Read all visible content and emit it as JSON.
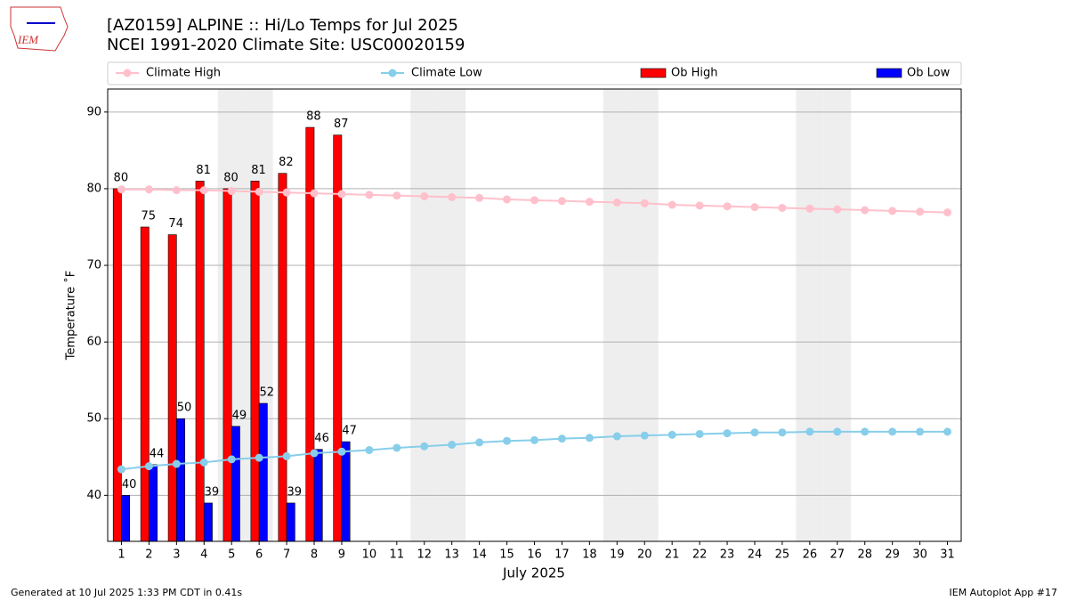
{
  "logo_text": "IEM",
  "chart_data": {
    "type": "bar_line",
    "title": "[AZ0159] ALPINE :: Hi/Lo Temps for Jul 2025",
    "subtitle": "NCEI 1991-2020 Climate Site: USC00020159",
    "xlabel": "July 2025",
    "ylabel": "Temperature ˚F",
    "x": [
      1,
      2,
      3,
      4,
      5,
      6,
      7,
      8,
      9,
      10,
      11,
      12,
      13,
      14,
      15,
      16,
      17,
      18,
      19,
      20,
      21,
      22,
      23,
      24,
      25,
      26,
      27,
      28,
      29,
      30,
      31
    ],
    "xlim": [
      0.5,
      31.5
    ],
    "xticks": [
      1,
      2,
      3,
      4,
      5,
      6,
      7,
      8,
      9,
      10,
      11,
      12,
      13,
      14,
      15,
      16,
      17,
      18,
      19,
      20,
      21,
      22,
      23,
      24,
      25,
      26,
      27,
      28,
      29,
      30,
      31
    ],
    "ylim": [
      34,
      93
    ],
    "yticks": [
      40,
      50,
      60,
      70,
      80,
      90
    ],
    "grid": true,
    "shaded_days": [
      5,
      6,
      12,
      13,
      19,
      20,
      26,
      27
    ],
    "series": [
      {
        "name": "Climate High",
        "kind": "line",
        "color": "#ffc0cb",
        "values": [
          79.9,
          79.9,
          79.8,
          79.8,
          79.7,
          79.6,
          79.5,
          79.4,
          79.3,
          79.2,
          79.1,
          79.0,
          78.9,
          78.8,
          78.6,
          78.5,
          78.4,
          78.3,
          78.2,
          78.1,
          77.9,
          77.8,
          77.7,
          77.6,
          77.5,
          77.4,
          77.3,
          77.2,
          77.1,
          77.0,
          76.9
        ]
      },
      {
        "name": "Climate Low",
        "kind": "line",
        "color": "#87ceeb",
        "values": [
          43.4,
          43.8,
          44.1,
          44.3,
          44.7,
          44.9,
          45.1,
          45.5,
          45.7,
          45.9,
          46.2,
          46.4,
          46.6,
          46.9,
          47.1,
          47.2,
          47.4,
          47.5,
          47.7,
          47.8,
          47.9,
          48.0,
          48.1,
          48.2,
          48.2,
          48.3,
          48.3,
          48.3,
          48.3,
          48.3,
          48.3
        ]
      },
      {
        "name": "Ob High",
        "kind": "bar",
        "color": "#ff0000",
        "values": [
          80,
          75,
          74,
          81,
          80,
          81,
          82,
          88,
          87,
          null,
          null,
          null,
          null,
          null,
          null,
          null,
          null,
          null,
          null,
          null,
          null,
          null,
          null,
          null,
          null,
          null,
          null,
          null,
          null,
          null,
          null
        ]
      },
      {
        "name": "Ob Low",
        "kind": "bar",
        "color": "#0000ff",
        "values": [
          40,
          44,
          50,
          39,
          49,
          52,
          39,
          46,
          47,
          null,
          null,
          null,
          null,
          null,
          null,
          null,
          null,
          null,
          null,
          null,
          null,
          null,
          null,
          null,
          null,
          null,
          null,
          null,
          null,
          null,
          null
        ]
      }
    ],
    "footer_left": "Generated at 10 Jul 2025 1:33 PM CDT in 0.41s",
    "footer_right": "IEM Autoplot App #17"
  }
}
